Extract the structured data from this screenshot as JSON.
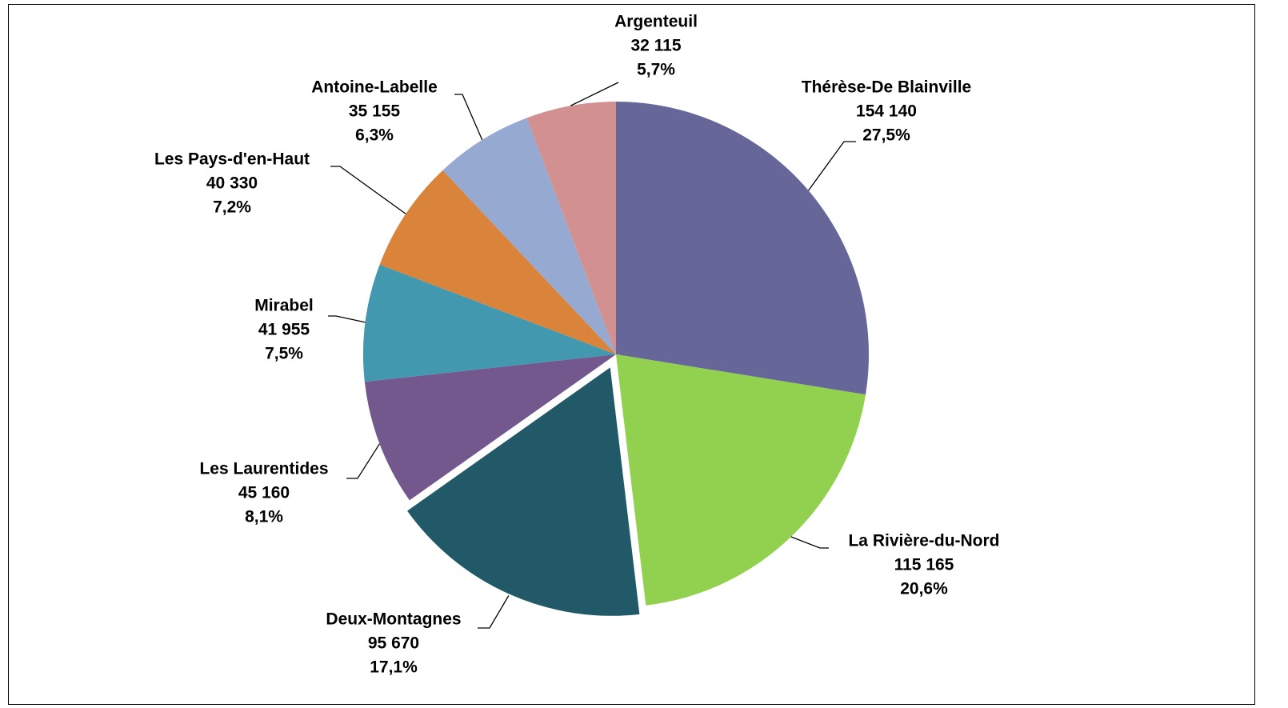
{
  "chart_data": {
    "type": "pie",
    "categories": [
      "Thérèse-De Blainville",
      "La Rivière-du-Nord",
      "Deux-Montagnes",
      "Les Laurentides",
      "Mirabel",
      "Les Pays-d'en-Haut",
      "Antoine-Labelle",
      "Argenteuil"
    ],
    "values": [
      154140,
      115165,
      95670,
      45160,
      41955,
      40330,
      35155,
      32115
    ],
    "value_labels": [
      "154 140",
      "115 165",
      "95 670",
      "45 160",
      "41 955",
      "40 330",
      "35 155",
      "32 115"
    ],
    "percent_labels": [
      "27,5%",
      "20,6%",
      "17,1%",
      "8,1%",
      "7,5%",
      "7,2%",
      "6,3%",
      "5,7%"
    ],
    "colors": [
      "#666699",
      "#92D050",
      "#215968",
      "#72588C",
      "#4198AF",
      "#D9833B",
      "#95A9D1",
      "#D29090"
    ],
    "explode": [
      false,
      false,
      true,
      false,
      false,
      false,
      false,
      false
    ]
  }
}
